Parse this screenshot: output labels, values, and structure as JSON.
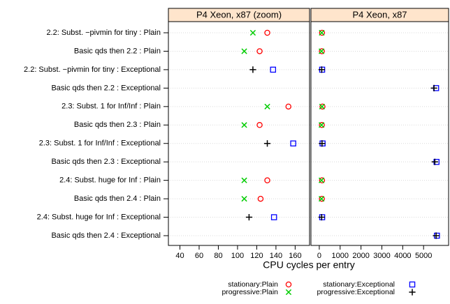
{
  "chart_data": {
    "type": "dotplot",
    "xlabel": "CPU cycles per entry",
    "categories": [
      "2.2: Subst. −pivmin for tiny : Plain",
      "Basic qds then 2.2 : Plain",
      "2.2: Subst. −pivmin for tiny : Exceptional",
      "Basic qds then 2.2 : Exceptional",
      "2.3: Subst. 1 for Inf/Inf : Plain",
      "Basic qds then 2.3 : Plain",
      "2.3: Subst. 1 for Inf/Inf : Exceptional",
      "Basic qds then 2.3 : Exceptional",
      "2.4: Subst. huge for Inf : Plain",
      "Basic qds then 2.4 : Plain",
      "2.4: Subst. huge for Inf : Exceptional",
      "Basic qds then 2.4 : Exceptional"
    ],
    "panels": [
      {
        "title": "P4 Xeon, x87 (zoom)",
        "xlim": [
          28,
          175
        ],
        "xticks": [
          40,
          60,
          80,
          100,
          120,
          140,
          160
        ]
      },
      {
        "title": "P4 Xeon, x87",
        "xlim": [
          -400,
          6200
        ],
        "xticks": [
          0,
          1000,
          2000,
          3000,
          4000,
          5000
        ]
      }
    ],
    "series": [
      {
        "name": "stationary:Plain",
        "color": "#ff0000",
        "symbol": "circle",
        "values": [
          131,
          123,
          null,
          null,
          153,
          123,
          null,
          null,
          131,
          124,
          null,
          null
        ]
      },
      {
        "name": "progressive:Plain",
        "color": "#00cc00",
        "symbol": "x",
        "values": [
          116,
          107,
          null,
          null,
          131,
          107,
          null,
          null,
          107,
          107,
          null,
          null
        ]
      },
      {
        "name": "stationary:Exceptional",
        "color": "#0000ff",
        "symbol": "square",
        "values": [
          null,
          null,
          137,
          5600,
          null,
          null,
          158,
          5620,
          null,
          null,
          138,
          5640
        ]
      },
      {
        "name": "progressive:Exceptional",
        "color": "#000000",
        "symbol": "plus",
        "values": [
          null,
          null,
          116,
          5500,
          null,
          null,
          131,
          5540,
          null,
          null,
          112,
          5600
        ]
      }
    ]
  }
}
